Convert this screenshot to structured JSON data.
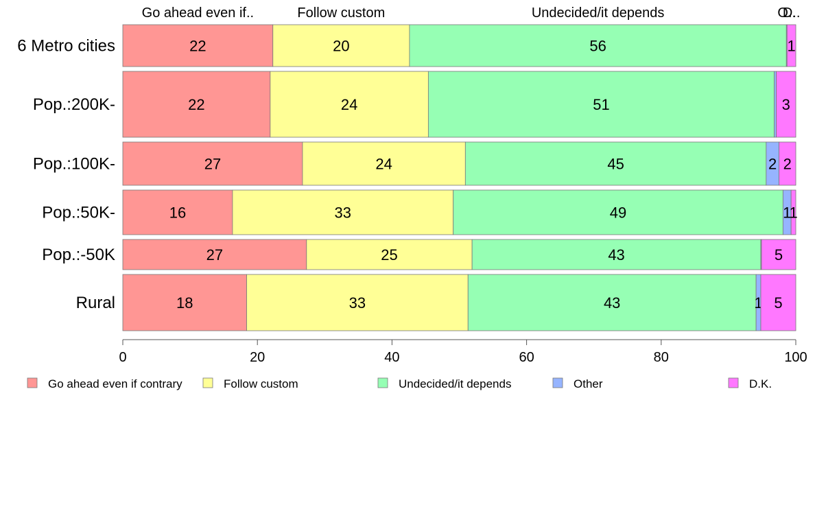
{
  "chart_data": {
    "type": "bar",
    "orientation": "horizontal",
    "stacked": true,
    "categories": [
      "6 Metro cities",
      "Pop.:200K-",
      "Pop.:100K-",
      "Pop.:50K-",
      "Pop.:-50K",
      "Rural"
    ],
    "series": [
      {
        "name": "Go ahead even if contrary",
        "top_label": "Go ahead even if..",
        "color": "#ff9694",
        "values": [
          22.3,
          21.9,
          26.7,
          16.3,
          27.3,
          18.4
        ],
        "labels": [
          "22",
          "22",
          "27",
          "16",
          "27",
          "18"
        ]
      },
      {
        "name": "Follow custom",
        "top_label": "Follow custom",
        "color": "#ffff96",
        "values": [
          20.3,
          23.5,
          24.2,
          32.8,
          24.6,
          32.9
        ],
        "labels": [
          "20",
          "24",
          "24",
          "33",
          "25",
          "33"
        ]
      },
      {
        "name": "Undecided/it depends",
        "top_label": "Undecided/it depends",
        "color": "#96ffb4",
        "values": [
          56.0,
          51.4,
          44.7,
          49.0,
          42.9,
          42.8
        ],
        "labels": [
          "56",
          "51",
          "45",
          "49",
          "43",
          "43"
        ]
      },
      {
        "name": "Other",
        "top_label": "O..",
        "color": "#96b4ff",
        "values": [
          0.1,
          0.3,
          1.9,
          1.2,
          0.1,
          0.7
        ],
        "labels": [
          "",
          "",
          "2",
          "1",
          "",
          "1"
        ]
      },
      {
        "name": "D.K.",
        "top_label": "D..",
        "color": "#ff78ff",
        "values": [
          1.3,
          2.9,
          2.5,
          0.7,
          5.1,
          5.2
        ],
        "labels": [
          "1",
          "3",
          "2",
          "1",
          "5",
          "5"
        ]
      }
    ],
    "xlim": [
      0,
      100
    ],
    "xticks": [
      0,
      20,
      40,
      60,
      80,
      100
    ],
    "grid": false,
    "legend_position": "bottom",
    "xlabel": "",
    "ylabel": "",
    "title": ""
  }
}
